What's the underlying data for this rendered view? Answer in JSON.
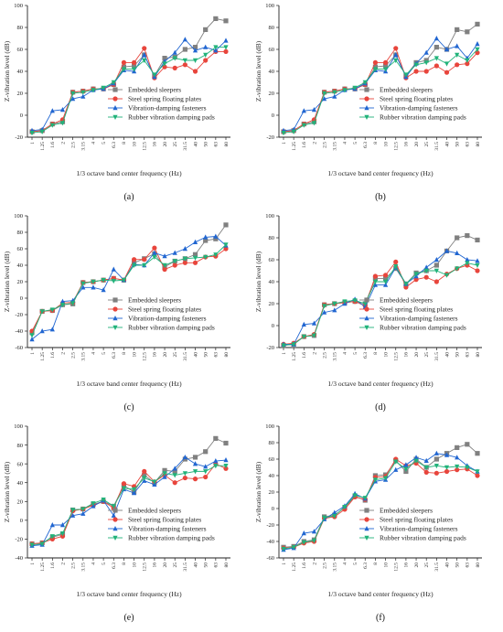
{
  "legend": [
    {
      "name": "Embedded sleepers",
      "color": "#808080",
      "marker": "square"
    },
    {
      "name": "Steel spring floating plates",
      "color": "#e8453c",
      "marker": "circle"
    },
    {
      "name": "Vibration-damping fasteners",
      "color": "#2166d1",
      "marker": "triangle-up"
    },
    {
      "name": "Rubber vibration damping pads",
      "color": "#21b37a",
      "marker": "triangle-down"
    }
  ],
  "chart_data": [
    {
      "panel": "(a)",
      "type": "line",
      "xlabel": "1/3 octave band center frequency (Hz)",
      "ylabel": "Z-vibration level (dB)",
      "ylim": [
        -20,
        100
      ],
      "yticks": [
        -20,
        0,
        20,
        40,
        60,
        80,
        100
      ],
      "categories": [
        "1",
        "1.25",
        "1.6",
        "2",
        "2.5",
        "3.15",
        "4",
        "5",
        "6.3",
        "8",
        "10",
        "12.5",
        "16",
        "20",
        "25",
        "31.5",
        "40",
        "50",
        "63",
        "80"
      ],
      "series": [
        {
          "name": "Embedded sleepers",
          "values": [
            -15,
            -14,
            -8,
            -6,
            21,
            22,
            24,
            24,
            28,
            44,
            45,
            55,
            36,
            52,
            53,
            60,
            62,
            78,
            88,
            86
          ]
        },
        {
          "name": "Steel spring floating plates",
          "values": [
            -15,
            -14,
            -8,
            -4,
            21,
            22,
            24,
            24,
            28,
            48,
            48,
            61,
            34,
            44,
            43,
            46,
            40,
            50,
            58,
            58
          ]
        },
        {
          "name": "Vibration-damping fasteners",
          "values": [
            -14,
            -13,
            4,
            5,
            15,
            17,
            23,
            24,
            29,
            41,
            40,
            55,
            35,
            49,
            57,
            69,
            59,
            62,
            59,
            68
          ]
        },
        {
          "name": "Rubber vibration damping pads",
          "values": [
            -16,
            -15,
            -9,
            -7,
            20,
            21,
            23,
            25,
            30,
            42,
            42,
            50,
            37,
            47,
            52,
            50,
            50,
            55,
            62,
            62
          ]
        }
      ]
    },
    {
      "panel": "(b)",
      "type": "line",
      "xlabel": "1/3 octave band center frequency (Hz)",
      "ylabel": "Z-vibration level (dB)",
      "ylim": [
        -20,
        100
      ],
      "yticks": [
        -20,
        0,
        20,
        40,
        60,
        80,
        100
      ],
      "categories": [
        "1",
        "1.25",
        "1.6",
        "2",
        "2.5",
        "3.15",
        "4",
        "5",
        "6.3",
        "8",
        "10",
        "12.5",
        "16",
        "20",
        "25",
        "31.5",
        "40",
        "50",
        "63",
        "80"
      ],
      "series": [
        {
          "name": "Embedded sleepers",
          "values": [
            -15,
            -14,
            -8,
            -6,
            21,
            22,
            24,
            24,
            28,
            44,
            45,
            55,
            36,
            48,
            50,
            62,
            60,
            78,
            76,
            83
          ]
        },
        {
          "name": "Steel spring floating plates",
          "values": [
            -15,
            -14,
            -8,
            -4,
            21,
            22,
            24,
            24,
            28,
            48,
            48,
            61,
            34,
            40,
            40,
            45,
            39,
            46,
            47,
            57
          ]
        },
        {
          "name": "Vibration-damping fasteners",
          "values": [
            -14,
            -13,
            4,
            5,
            15,
            17,
            23,
            24,
            29,
            41,
            40,
            55,
            35,
            47,
            57,
            70,
            60,
            63,
            52,
            65
          ]
        },
        {
          "name": "Rubber vibration damping pads",
          "values": [
            -16,
            -15,
            -9,
            -7,
            20,
            21,
            23,
            25,
            30,
            42,
            42,
            50,
            37,
            46,
            48,
            52,
            47,
            55,
            50,
            60
          ]
        }
      ]
    },
    {
      "panel": "(c)",
      "type": "line",
      "xlabel": "1/3 octave band center frequency (Hz)",
      "ylabel": "Z-vibration level (dB)",
      "ylim": [
        -60,
        100
      ],
      "yticks": [
        -60,
        -40,
        -20,
        0,
        20,
        40,
        60,
        80,
        100
      ],
      "categories": [
        "1",
        "1.25",
        "1.6",
        "2",
        "2.5",
        "3.15",
        "4",
        "5",
        "6.3",
        "8",
        "10",
        "12.5",
        "16",
        "20",
        "25",
        "31.5",
        "40",
        "50",
        "63",
        "80"
      ],
      "series": [
        {
          "name": "Embedded sleepers",
          "values": [
            -42,
            -16,
            -15,
            -8,
            -7,
            19,
            20,
            22,
            24,
            22,
            43,
            48,
            54,
            38,
            45,
            48,
            53,
            70,
            72,
            89
          ]
        },
        {
          "name": "Steel spring floating plates",
          "values": [
            -40,
            -16,
            -15,
            -6,
            -5,
            19,
            20,
            22,
            24,
            22,
            47,
            47,
            61,
            35,
            40,
            43,
            43,
            50,
            51,
            60
          ]
        },
        {
          "name": "Vibration-damping fasteners",
          "values": [
            -50,
            -40,
            -38,
            -4,
            -3,
            13,
            13,
            10,
            35,
            22,
            41,
            40,
            55,
            51,
            55,
            60,
            68,
            74,
            75,
            64
          ]
        },
        {
          "name": "Rubber vibration damping pads",
          "values": [
            -45,
            -16,
            -14,
            -8,
            -6,
            18,
            20,
            22,
            21,
            22,
            40,
            40,
            50,
            40,
            45,
            48,
            49,
            50,
            53,
            65
          ]
        }
      ]
    },
    {
      "panel": "(d)",
      "type": "line",
      "xlabel": "1/3 octave band center frequency (Hz)",
      "ylabel": "Z-vibration level (dB)",
      "ylim": [
        -20,
        100
      ],
      "yticks": [
        -20,
        0,
        20,
        40,
        60,
        80,
        100
      ],
      "categories": [
        "1",
        "1.25",
        "1.6",
        "2",
        "2.5",
        "3.15",
        "4",
        "5",
        "6.3",
        "8",
        "10",
        "12.5",
        "16",
        "20",
        "25",
        "31.5",
        "40",
        "50",
        "63",
        "80"
      ],
      "series": [
        {
          "name": "Embedded sleepers",
          "values": [
            -18,
            -17,
            -10,
            -9,
            19,
            20,
            21,
            22,
            20,
            43,
            43,
            52,
            38,
            48,
            50,
            55,
            68,
            80,
            82,
            78
          ]
        },
        {
          "name": "Steel spring floating plates",
          "values": [
            -17,
            -16,
            -10,
            -8,
            19,
            20,
            21,
            22,
            18,
            45,
            46,
            58,
            35,
            42,
            44,
            40,
            47,
            52,
            55,
            50
          ]
        },
        {
          "name": "Vibration-damping fasteners",
          "values": [
            -17,
            -17,
            1,
            2,
            12,
            14,
            20,
            24,
            17,
            37,
            37,
            53,
            38,
            45,
            53,
            60,
            68,
            66,
            60,
            59
          ]
        },
        {
          "name": "Rubber vibration damping pads",
          "values": [
            -18,
            -17,
            -10,
            -9,
            18,
            20,
            22,
            23,
            20,
            40,
            40,
            54,
            38,
            47,
            50,
            50,
            46,
            52,
            57,
            55
          ]
        }
      ]
    },
    {
      "panel": "(e)",
      "type": "line",
      "xlabel": "1/3 octave band center frequency (Hz)",
      "ylabel": "Z-vibration level (dB)",
      "ylim": [
        -40,
        100
      ],
      "yticks": [
        -40,
        -20,
        0,
        20,
        40,
        60,
        80,
        100
      ],
      "categories": [
        "1",
        "1.25",
        "1.6",
        "2",
        "2.5",
        "3.15",
        "4",
        "5",
        "6.3",
        "8",
        "10",
        "12.5",
        "16",
        "20",
        "25",
        "31.5",
        "40",
        "50",
        "63",
        "80"
      ],
      "series": [
        {
          "name": "Embedded sleepers",
          "values": [
            -25,
            -24,
            -18,
            -15,
            11,
            12,
            17,
            20,
            15,
            37,
            30,
            48,
            40,
            53,
            52,
            65,
            67,
            73,
            87,
            82
          ]
        },
        {
          "name": "Steel spring floating plates",
          "values": [
            -25,
            -24,
            -20,
            -17,
            10,
            12,
            16,
            20,
            13,
            39,
            36,
            52,
            41,
            48,
            40,
            45,
            44,
            46,
            60,
            55
          ]
        },
        {
          "name": "Vibration-damping fasteners",
          "values": [
            -27,
            -26,
            -5,
            -5,
            5,
            7,
            15,
            21,
            5,
            33,
            29,
            42,
            38,
            46,
            55,
            67,
            60,
            57,
            63,
            64
          ]
        },
        {
          "name": "Rubber vibration damping pads",
          "values": [
            -26,
            -25,
            -17,
            -14,
            11,
            12,
            18,
            22,
            15,
            34,
            33,
            45,
            41,
            50,
            48,
            50,
            52,
            52,
            58,
            58
          ]
        }
      ]
    },
    {
      "panel": "(f)",
      "type": "line",
      "xlabel": "1/3 octave band center frequency (Hz)",
      "ylabel": "Z-vibration level (dB)",
      "ylim": [
        -60,
        100
      ],
      "yticks": [
        -60,
        -40,
        -20,
        0,
        20,
        40,
        60,
        80,
        100
      ],
      "categories": [
        "1",
        "1.25",
        "1.6",
        "2",
        "2.5",
        "3.15",
        "4",
        "5",
        "6.3",
        "8",
        "10",
        "12.5",
        "16",
        "20",
        "25",
        "31.5",
        "40",
        "50",
        "63",
        "80"
      ],
      "series": [
        {
          "name": "Embedded sleepers",
          "values": [
            -47,
            -46,
            -40,
            -38,
            -10,
            -8,
            1,
            15,
            10,
            40,
            41,
            58,
            45,
            60,
            50,
            60,
            67,
            74,
            78,
            67
          ]
        },
        {
          "name": "Steel spring floating plates",
          "values": [
            -48,
            -47,
            -42,
            -40,
            -12,
            -10,
            -1,
            14,
            11,
            38,
            39,
            60,
            52,
            55,
            44,
            43,
            45,
            47,
            48,
            40
          ]
        },
        {
          "name": "Vibration-damping fasteners",
          "values": [
            -50,
            -48,
            -30,
            -28,
            -13,
            -5,
            3,
            18,
            12,
            33,
            35,
            47,
            53,
            62,
            58,
            67,
            65,
            62,
            52,
            45
          ]
        },
        {
          "name": "Rubber vibration damping pads",
          "values": [
            -49,
            -47,
            -41,
            -39,
            -11,
            -9,
            2,
            16,
            13,
            35,
            37,
            57,
            48,
            58,
            50,
            52,
            50,
            51,
            50,
            45
          ]
        }
      ]
    }
  ]
}
